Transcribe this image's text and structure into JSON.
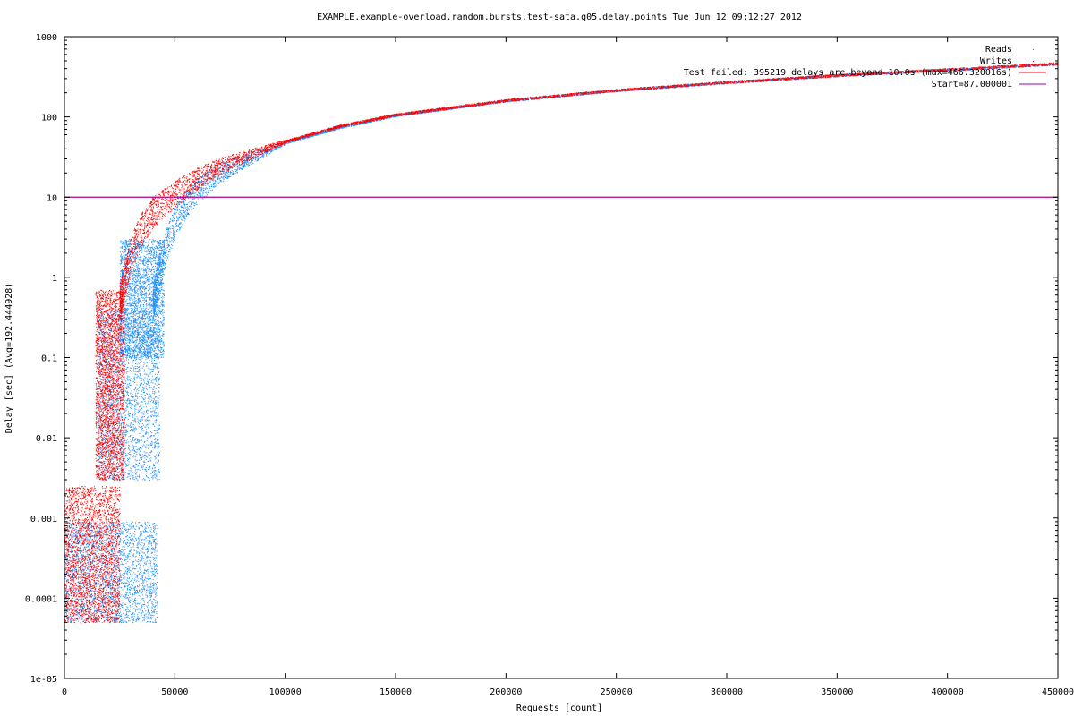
{
  "chart_data": {
    "type": "scatter",
    "title": "EXAMPLE.example-overload.random.bursts.test-sata.g05.delay.points Tue Jun 12 09:12:27 2012",
    "xlabel": "Requests [count]",
    "ylabel": "Delay [sec]  (Avg=192.444928)",
    "xlim": [
      0,
      450000
    ],
    "ylim": [
      1e-05,
      1000
    ],
    "yscale": "log",
    "grid": false,
    "legend_position": "top-right",
    "x_ticks": [
      "0",
      "50000",
      "100000",
      "150000",
      "200000",
      "250000",
      "300000",
      "350000",
      "400000",
      "450000"
    ],
    "x_tick_values": [
      0,
      50000,
      100000,
      150000,
      200000,
      250000,
      300000,
      350000,
      400000,
      450000
    ],
    "y_ticks": [
      "1e-05",
      "0.0001",
      "0.001",
      "0.01",
      "0.1",
      "1",
      "10",
      "100",
      "1000"
    ],
    "y_tick_values": [
      1e-05,
      0.0001,
      0.001,
      0.01,
      0.1,
      1,
      10,
      100,
      1000
    ],
    "series": [
      {
        "name": "Reads",
        "kind": "points",
        "color": "#1e90ff",
        "bands": [
          {
            "x": [
              0,
              42000
            ],
            "y": [
              5e-05,
              0.0009
            ]
          },
          {
            "x": [
              15000,
              43000
            ],
            "y": [
              0.003,
              0.4
            ]
          },
          {
            "x": [
              25000,
              45000
            ],
            "y": [
              0.1,
              3.0
            ]
          }
        ],
        "curve": [
          [
            40000,
            0.5
          ],
          [
            45000,
            2.0
          ],
          [
            50000,
            5.0
          ],
          [
            55000,
            8.5
          ],
          [
            60000,
            12
          ],
          [
            70000,
            20
          ],
          [
            80000,
            27
          ],
          [
            100000,
            48
          ],
          [
            125000,
            75
          ],
          [
            150000,
            105
          ],
          [
            200000,
            160
          ],
          [
            250000,
            215
          ],
          [
            300000,
            270
          ],
          [
            350000,
            330
          ],
          [
            400000,
            390
          ],
          [
            450000,
            460
          ]
        ]
      },
      {
        "name": "Writes",
        "kind": "points",
        "color": "#ff0000",
        "bands": [
          {
            "x": [
              0,
              25000
            ],
            "y": [
              5e-05,
              0.0025
            ]
          },
          {
            "x": [
              14000,
              27000
            ],
            "y": [
              0.003,
              0.7
            ]
          }
        ],
        "curve": [
          [
            25000,
            0.5
          ],
          [
            30000,
            2.0
          ],
          [
            35000,
            4.0
          ],
          [
            40000,
            6.5
          ],
          [
            50000,
            11
          ],
          [
            60000,
            17
          ],
          [
            70000,
            24
          ],
          [
            80000,
            31
          ],
          [
            100000,
            50
          ],
          [
            125000,
            78
          ],
          [
            150000,
            107
          ],
          [
            200000,
            162
          ],
          [
            250000,
            217
          ],
          [
            300000,
            272
          ],
          [
            350000,
            332
          ],
          [
            400000,
            392
          ],
          [
            450000,
            466
          ]
        ]
      },
      {
        "name": "Test failed: 395219 delays are beyond 10.0s (max=466.320016s)",
        "kind": "line",
        "color": "#ff0000",
        "points": [
          [
            0,
            10
          ],
          [
            450000,
            10
          ]
        ]
      },
      {
        "name": "Start=87.000001",
        "kind": "line",
        "color": "#a000a0",
        "points": [
          [
            0,
            10
          ],
          [
            450000,
            10
          ]
        ]
      }
    ]
  }
}
